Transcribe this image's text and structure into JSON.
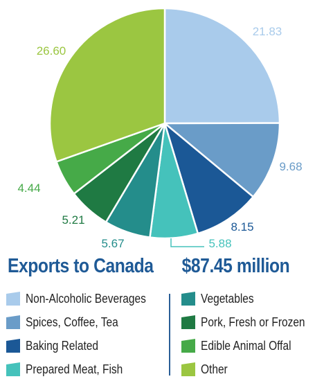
{
  "chart_data": {
    "type": "pie",
    "title": "Exports to Canada",
    "total_label": "$87.45 million",
    "slices": [
      {
        "label": "Non-Alcoholic Beverages",
        "value": 21.83,
        "value_label": "21.83",
        "color": "#a9cbeb"
      },
      {
        "label": "Spices, Coffee, Tea",
        "value": 9.68,
        "value_label": "9.68",
        "color": "#6a9cc8"
      },
      {
        "label": "Baking Related",
        "value": 8.15,
        "value_label": "8.15",
        "color": "#1b5896"
      },
      {
        "label": "Prepared Meat, Fish",
        "value": 5.88,
        "value_label": "5.88",
        "color": "#45c2bb"
      },
      {
        "label": "Vegetables",
        "value": 5.67,
        "value_label": "5.67",
        "color": "#248d8b"
      },
      {
        "label": "Pork, Fresh or Frozen",
        "value": 5.21,
        "value_label": "5.21",
        "color": "#1f7a43"
      },
      {
        "label": "Edible Animal Offal",
        "value": 4.44,
        "value_label": "4.44",
        "color": "#46aa48"
      },
      {
        "label": "Other",
        "value": 26.6,
        "value_label": "26.60",
        "color": "#9bc641"
      }
    ],
    "legend_placement": "bottom"
  }
}
